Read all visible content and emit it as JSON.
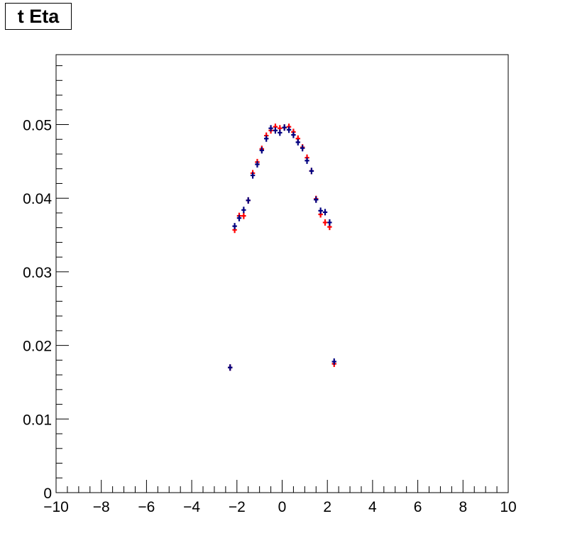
{
  "chart_data": {
    "type": "scatter",
    "title": "t Eta",
    "xlabel": "",
    "ylabel": "",
    "xlim": [
      -10,
      10
    ],
    "ylim": [
      0,
      0.0595
    ],
    "x_ticks": [
      -10,
      -8,
      -6,
      -4,
      -2,
      0,
      2,
      4,
      6,
      8,
      10
    ],
    "x_tick_labels": [
      "−10",
      "−8",
      "−6",
      "−4",
      "−2",
      "0",
      "2",
      "4",
      "6",
      "8",
      "10"
    ],
    "y_ticks": [
      0,
      0.01,
      0.02,
      0.03,
      0.04,
      0.05
    ],
    "y_tick_labels": [
      "0",
      "0.01",
      "0.02",
      "0.03",
      "0.04",
      "0.05"
    ],
    "grid": false,
    "series": [
      {
        "color": "#ff0000",
        "x": [
          -2.3,
          -2.1,
          -1.9,
          -1.7,
          -1.5,
          -1.3,
          -1.1,
          -0.9,
          -0.7,
          -0.5,
          -0.3,
          -0.1,
          0.1,
          0.3,
          0.5,
          0.7,
          0.9,
          1.1,
          1.3,
          1.5,
          1.7,
          1.9,
          2.1,
          2.3
        ],
        "y": [
          0.017,
          0.0357,
          0.0376,
          0.0376,
          0.0397,
          0.0434,
          0.0449,
          0.0467,
          0.0485,
          0.0492,
          0.0497,
          0.0495,
          0.0496,
          0.0497,
          0.049,
          0.0481,
          0.0469,
          0.0455,
          0.0437,
          0.0399,
          0.0378,
          0.0367,
          0.0361,
          0.0175
        ]
      },
      {
        "color": "#000080",
        "x": [
          -2.3,
          -2.1,
          -1.9,
          -1.7,
          -1.5,
          -1.3,
          -1.1,
          -0.9,
          -0.7,
          -0.5,
          -0.3,
          -0.1,
          0.1,
          0.3,
          0.5,
          0.7,
          0.9,
          1.1,
          1.3,
          1.5,
          1.7,
          1.9,
          2.1,
          2.3
        ],
        "y": [
          0.017,
          0.0362,
          0.0373,
          0.0384,
          0.0397,
          0.0431,
          0.0446,
          0.0465,
          0.0481,
          0.0495,
          0.0492,
          0.0489,
          0.0496,
          0.0493,
          0.0486,
          0.0476,
          0.0468,
          0.0451,
          0.0437,
          0.0398,
          0.0383,
          0.0381,
          0.0367,
          0.0178
        ]
      }
    ]
  }
}
